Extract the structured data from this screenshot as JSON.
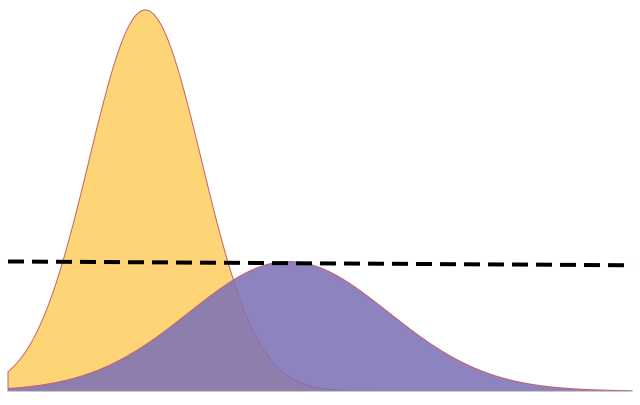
{
  "chart_data": {
    "type": "area",
    "title": "",
    "xlabel": "",
    "ylabel": "",
    "grid": false,
    "legend": "none",
    "x_range": [
      0,
      10
    ],
    "y_range": [
      0,
      1
    ],
    "series": [
      {
        "kind": "normal-density",
        "mean": 2.2,
        "sd": 0.9,
        "peak": 1.0,
        "fill": "#fdd576",
        "stroke": "#c3636a"
      },
      {
        "kind": "normal-density",
        "mean": 4.5,
        "sd": 1.6,
        "peak": 0.34,
        "fill": "#7d72b6",
        "stroke": "#c3636a"
      }
    ],
    "reference_line": {
      "style": "dashed",
      "color": "#000000",
      "y_start": 0.34,
      "y_end": 0.33
    }
  }
}
